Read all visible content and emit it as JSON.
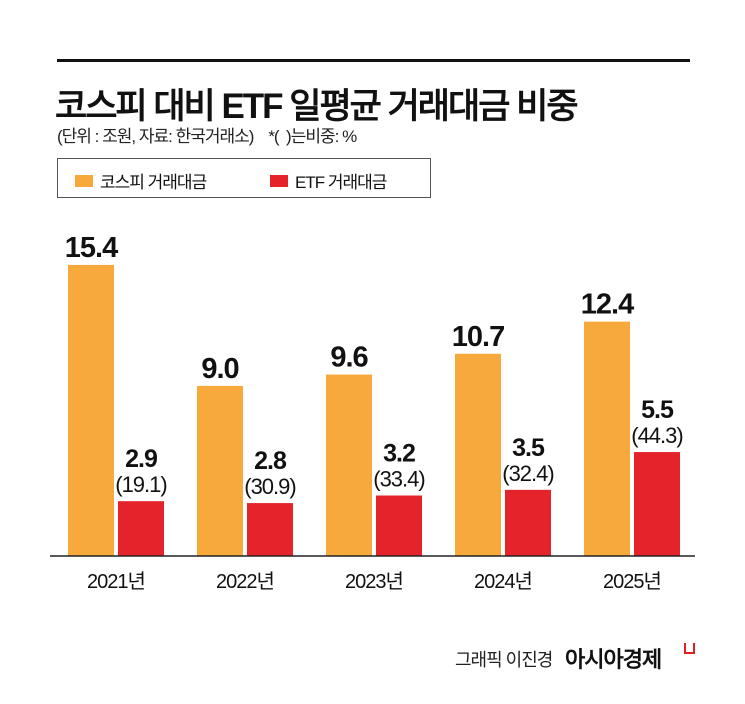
{
  "header": {
    "title": "코스피 대비 ETF 일평균 거래대금 비중",
    "subtitle": "(단위 : 조원, 자료: 한국거래소)    *(  )는비중: %"
  },
  "chart_data": {
    "type": "bar",
    "title": "코스피 대비 ETF 일평균 거래대금 비중",
    "categories": [
      "2021년",
      "2022년",
      "2023년",
      "2024년",
      "2025년"
    ],
    "series": [
      {
        "name": "코스피 거래대금",
        "color": "#f7a93b",
        "values": [
          15.4,
          9.0,
          9.6,
          10.7,
          12.4
        ],
        "labels": [
          "15.4",
          "9.0",
          "9.6",
          "10.7",
          "12.4"
        ]
      },
      {
        "name": "ETF 거래대금",
        "color": "#e4232b",
        "values": [
          2.9,
          2.8,
          3.2,
          3.5,
          5.5
        ],
        "labels": [
          "2.9",
          "2.8",
          "3.2",
          "3.5",
          "5.5"
        ],
        "share_labels": [
          "(19.1)",
          "(30.9)",
          "(33.4)",
          "(32.4)",
          "(44.3)"
        ],
        "share_pct": [
          19.1,
          30.9,
          33.4,
          32.4,
          44.3
        ]
      }
    ],
    "ylim": [
      0,
      16
    ],
    "grid": false,
    "legend": "top-left"
  },
  "footer": {
    "credit": "그래픽 이진경",
    "brand": "아시아경제"
  }
}
